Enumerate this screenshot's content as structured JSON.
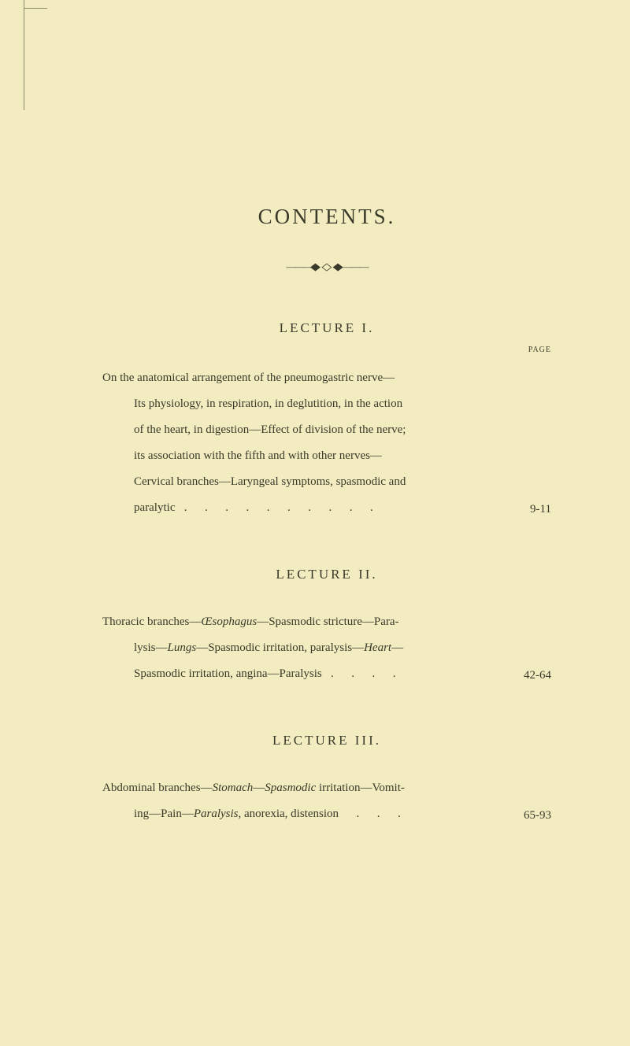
{
  "page": {
    "title": "CONTENTS.",
    "page_label": "PAGE",
    "lectures": [
      {
        "heading": "LECTURE I.",
        "text_lines": [
          "On the anatomical arrangement of the pneumogastric nerve—",
          "Its physiology, in respiration, in deglutition, in the action",
          "of the heart, in digestion—Effect of division of the nerve;",
          "its association with the fifth and with other nerves—",
          "Cervical branches—Laryngeal symptoms, spasmodic and",
          "paralytic   .      .      .      .      .      .      .      .      .      ."
        ],
        "page_range": "9-11"
      },
      {
        "heading": "LECTURE II.",
        "text_lines": [
          "Thoracic branches—Œsophagus—Spasmodic stricture—Para-",
          "lysis—Lungs—Spasmodic irritation, paralysis—Heart—",
          "Spasmodic irritation, angina—Paralysis   .      .      .      ."
        ],
        "page_range": "42-64",
        "italic_words": [
          "Œsophagus",
          "Lungs",
          "Heart"
        ]
      },
      {
        "heading": "LECTURE III.",
        "text_lines": [
          "Abdominal branches—Stomach—Spasmodic irritation—Vomit-",
          "ing—Pain—Paralysis, anorexia, distension      .      .      ."
        ],
        "page_range": "65-93",
        "italic_words": [
          "Stomach",
          "Spasmodic",
          "Paralysis"
        ]
      }
    ]
  },
  "styling": {
    "background_color": "#f2ecc0",
    "text_color": "#3a3a2a",
    "title_fontsize": 27,
    "heading_fontsize": 17,
    "body_fontsize": 15,
    "page_label_fontsize": 10,
    "line_height": 2.2
  }
}
